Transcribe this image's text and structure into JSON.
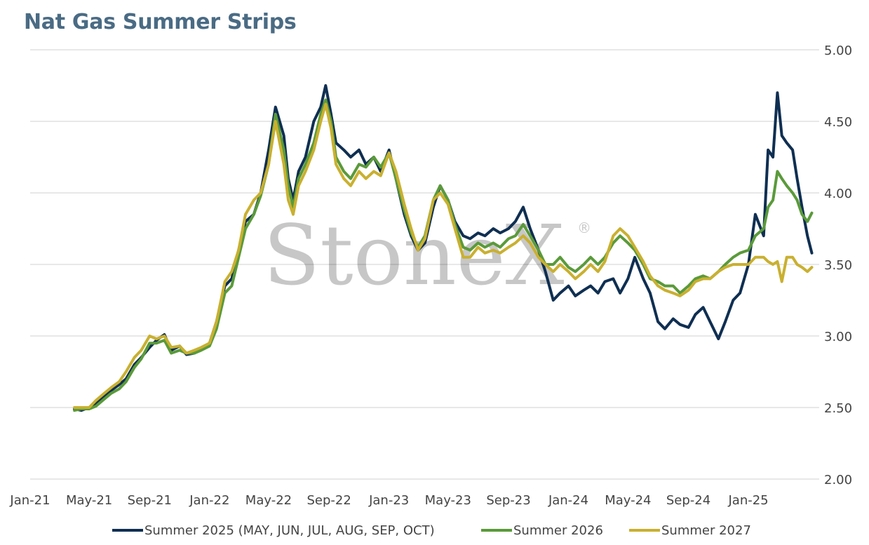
{
  "chart_data": {
    "type": "line",
    "title": "Nat Gas Summer Strips",
    "watermark": "StoneX",
    "watermark_mark": "®",
    "x_tick_labels": [
      "Jan-21",
      "May-21",
      "Sep-21",
      "Jan-22",
      "May-22",
      "Sep-22",
      "Jan-23",
      "May-23",
      "Sep-23",
      "Jan-24",
      "May-24",
      "Sep-24",
      "Jan-25"
    ],
    "y_tick_labels": [
      "2.00",
      "2.50",
      "3.00",
      "3.50",
      "4.00",
      "4.50",
      "5.00"
    ],
    "xlim": [
      "2021-01-01",
      "2025-05-25"
    ],
    "ylim": [
      2.0,
      5.0
    ],
    "y_axis_position": "right",
    "grid": "horizontal",
    "legend_position": "bottom",
    "colors": {
      "Summer 2025 (MAY, JUN, JUL, AUG, SEP, OCT)": "#0f2f52",
      "Summer 2026": "#5a9a3a",
      "Summer 2027": "#c9b030"
    },
    "series": [
      {
        "name": "Summer 2025 (MAY, JUN, JUL, AUG, SEP, OCT)",
        "x": [
          "2021-04-01",
          "2021-04-15",
          "2021-05-01",
          "2021-05-15",
          "2021-06-01",
          "2021-06-15",
          "2021-07-01",
          "2021-07-15",
          "2021-08-01",
          "2021-08-15",
          "2021-09-01",
          "2021-09-15",
          "2021-10-01",
          "2021-10-15",
          "2021-11-01",
          "2021-11-15",
          "2021-12-01",
          "2021-12-15",
          "2022-01-01",
          "2022-01-15",
          "2022-02-01",
          "2022-02-15",
          "2022-03-01",
          "2022-03-15",
          "2022-04-01",
          "2022-04-15",
          "2022-05-01",
          "2022-05-15",
          "2022-06-01",
          "2022-06-10",
          "2022-06-20",
          "2022-07-01",
          "2022-07-15",
          "2022-08-01",
          "2022-08-15",
          "2022-08-25",
          "2022-09-05",
          "2022-09-15",
          "2022-10-01",
          "2022-10-15",
          "2022-11-01",
          "2022-11-15",
          "2022-12-01",
          "2022-12-15",
          "2023-01-01",
          "2023-01-15",
          "2023-02-01",
          "2023-02-15",
          "2023-03-01",
          "2023-03-15",
          "2023-04-01",
          "2023-04-15",
          "2023-05-01",
          "2023-05-15",
          "2023-06-01",
          "2023-06-15",
          "2023-07-01",
          "2023-07-15",
          "2023-08-01",
          "2023-08-15",
          "2023-09-01",
          "2023-09-15",
          "2023-10-01",
          "2023-10-15",
          "2023-11-01",
          "2023-11-15",
          "2023-12-01",
          "2023-12-15",
          "2024-01-01",
          "2024-01-15",
          "2024-02-01",
          "2024-02-15",
          "2024-03-01",
          "2024-03-15",
          "2024-04-01",
          "2024-04-15",
          "2024-05-01",
          "2024-05-15",
          "2024-06-01",
          "2024-06-15",
          "2024-07-01",
          "2024-07-15",
          "2024-08-01",
          "2024-08-15",
          "2024-09-01",
          "2024-09-15",
          "2024-10-01",
          "2024-10-15",
          "2024-11-01",
          "2024-11-15",
          "2024-12-01",
          "2024-12-15",
          "2025-01-01",
          "2025-01-15",
          "2025-02-01",
          "2025-02-10",
          "2025-02-20",
          "2025-03-01",
          "2025-03-10",
          "2025-03-20",
          "2025-04-01",
          "2025-04-10",
          "2025-04-20",
          "2025-05-01",
          "2025-05-10"
        ],
        "values": [
          2.49,
          2.48,
          2.5,
          2.53,
          2.58,
          2.62,
          2.66,
          2.7,
          2.8,
          2.85,
          2.92,
          2.97,
          3.01,
          2.9,
          2.93,
          2.87,
          2.88,
          2.91,
          2.95,
          3.1,
          3.35,
          3.4,
          3.6,
          3.8,
          3.85,
          4.0,
          4.3,
          4.6,
          4.4,
          4.1,
          3.95,
          4.15,
          4.25,
          4.5,
          4.6,
          4.75,
          4.55,
          4.35,
          4.3,
          4.25,
          4.3,
          4.2,
          4.25,
          4.15,
          4.3,
          4.1,
          3.85,
          3.7,
          3.6,
          3.65,
          3.9,
          4.05,
          3.95,
          3.8,
          3.7,
          3.68,
          3.72,
          3.7,
          3.75,
          3.72,
          3.75,
          3.8,
          3.9,
          3.75,
          3.6,
          3.45,
          3.25,
          3.3,
          3.35,
          3.28,
          3.32,
          3.35,
          3.3,
          3.38,
          3.4,
          3.3,
          3.4,
          3.55,
          3.4,
          3.3,
          3.1,
          3.05,
          3.12,
          3.08,
          3.06,
          3.15,
          3.2,
          3.1,
          2.98,
          3.1,
          3.25,
          3.3,
          3.5,
          3.85,
          3.7,
          4.3,
          4.25,
          4.7,
          4.4,
          4.35,
          4.3,
          4.1,
          3.9,
          3.7,
          3.58
        ]
      },
      {
        "name": "Summer 2026",
        "x": [
          "2021-04-01",
          "2021-04-15",
          "2021-05-01",
          "2021-05-15",
          "2021-06-01",
          "2021-06-15",
          "2021-07-01",
          "2021-07-15",
          "2021-08-01",
          "2021-08-15",
          "2021-09-01",
          "2021-09-15",
          "2021-10-01",
          "2021-10-15",
          "2021-11-01",
          "2021-11-15",
          "2021-12-01",
          "2021-12-15",
          "2022-01-01",
          "2022-01-15",
          "2022-02-01",
          "2022-02-15",
          "2022-03-01",
          "2022-03-15",
          "2022-04-01",
          "2022-04-15",
          "2022-05-01",
          "2022-05-15",
          "2022-06-01",
          "2022-06-10",
          "2022-06-20",
          "2022-07-01",
          "2022-07-15",
          "2022-08-01",
          "2022-08-15",
          "2022-08-25",
          "2022-09-05",
          "2022-09-15",
          "2022-10-01",
          "2022-10-15",
          "2022-11-01",
          "2022-11-15",
          "2022-12-01",
          "2022-12-15",
          "2023-01-01",
          "2023-01-15",
          "2023-02-01",
          "2023-02-15",
          "2023-03-01",
          "2023-03-15",
          "2023-04-01",
          "2023-04-15",
          "2023-05-01",
          "2023-05-15",
          "2023-06-01",
          "2023-06-15",
          "2023-07-01",
          "2023-07-15",
          "2023-08-01",
          "2023-08-15",
          "2023-09-01",
          "2023-09-15",
          "2023-10-01",
          "2023-10-15",
          "2023-11-01",
          "2023-11-15",
          "2023-12-01",
          "2023-12-15",
          "2024-01-01",
          "2024-01-15",
          "2024-02-01",
          "2024-02-15",
          "2024-03-01",
          "2024-03-15",
          "2024-04-01",
          "2024-04-15",
          "2024-05-01",
          "2024-05-15",
          "2024-06-01",
          "2024-06-15",
          "2024-07-01",
          "2024-07-15",
          "2024-08-01",
          "2024-08-15",
          "2024-09-01",
          "2024-09-15",
          "2024-10-01",
          "2024-10-15",
          "2024-11-01",
          "2024-11-15",
          "2024-12-01",
          "2024-12-15",
          "2025-01-01",
          "2025-01-15",
          "2025-02-01",
          "2025-02-10",
          "2025-02-20",
          "2025-03-01",
          "2025-03-10",
          "2025-03-20",
          "2025-04-01",
          "2025-04-10",
          "2025-04-20",
          "2025-05-01",
          "2025-05-10"
        ],
        "values": [
          2.48,
          2.49,
          2.49,
          2.51,
          2.56,
          2.6,
          2.63,
          2.68,
          2.78,
          2.84,
          2.95,
          2.95,
          2.97,
          2.88,
          2.9,
          2.88,
          2.88,
          2.9,
          2.93,
          3.05,
          3.3,
          3.35,
          3.55,
          3.75,
          3.85,
          3.98,
          4.2,
          4.55,
          4.3,
          4.05,
          3.9,
          4.1,
          4.2,
          4.35,
          4.55,
          4.65,
          4.5,
          4.25,
          4.15,
          4.1,
          4.2,
          4.18,
          4.25,
          4.18,
          4.28,
          4.1,
          3.88,
          3.72,
          3.62,
          3.7,
          3.95,
          4.05,
          3.95,
          3.78,
          3.62,
          3.6,
          3.65,
          3.62,
          3.65,
          3.62,
          3.68,
          3.7,
          3.78,
          3.7,
          3.6,
          3.5,
          3.5,
          3.55,
          3.48,
          3.45,
          3.5,
          3.55,
          3.5,
          3.55,
          3.65,
          3.7,
          3.65,
          3.6,
          3.5,
          3.4,
          3.38,
          3.35,
          3.35,
          3.3,
          3.35,
          3.4,
          3.42,
          3.4,
          3.45,
          3.5,
          3.55,
          3.58,
          3.6,
          3.7,
          3.75,
          3.9,
          3.95,
          4.15,
          4.1,
          4.05,
          4.0,
          3.95,
          3.85,
          3.8,
          3.86
        ]
      },
      {
        "name": "Summer 2027",
        "x": [
          "2021-04-01",
          "2021-04-15",
          "2021-05-01",
          "2021-05-15",
          "2021-06-01",
          "2021-06-15",
          "2021-07-01",
          "2021-07-15",
          "2021-08-01",
          "2021-08-15",
          "2021-09-01",
          "2021-09-15",
          "2021-10-01",
          "2021-10-15",
          "2021-11-01",
          "2021-11-15",
          "2021-12-01",
          "2021-12-15",
          "2022-01-01",
          "2022-01-15",
          "2022-02-01",
          "2022-02-15",
          "2022-03-01",
          "2022-03-15",
          "2022-04-01",
          "2022-04-15",
          "2022-05-01",
          "2022-05-15",
          "2022-06-01",
          "2022-06-10",
          "2022-06-20",
          "2022-07-01",
          "2022-07-15",
          "2022-08-01",
          "2022-08-15",
          "2022-08-25",
          "2022-09-05",
          "2022-09-15",
          "2022-10-01",
          "2022-10-15",
          "2022-11-01",
          "2022-11-15",
          "2022-12-01",
          "2022-12-15",
          "2023-01-01",
          "2023-01-15",
          "2023-02-01",
          "2023-02-15",
          "2023-03-01",
          "2023-03-15",
          "2023-04-01",
          "2023-04-15",
          "2023-05-01",
          "2023-05-15",
          "2023-06-01",
          "2023-06-15",
          "2023-07-01",
          "2023-07-15",
          "2023-08-01",
          "2023-08-15",
          "2023-09-01",
          "2023-09-15",
          "2023-10-01",
          "2023-10-15",
          "2023-11-01",
          "2023-11-15",
          "2023-12-01",
          "2023-12-15",
          "2024-01-01",
          "2024-01-15",
          "2024-02-01",
          "2024-02-15",
          "2024-03-01",
          "2024-03-15",
          "2024-04-01",
          "2024-04-15",
          "2024-05-01",
          "2024-05-15",
          "2024-06-01",
          "2024-06-15",
          "2024-07-01",
          "2024-07-15",
          "2024-08-01",
          "2024-08-15",
          "2024-09-01",
          "2024-09-15",
          "2024-10-01",
          "2024-10-15",
          "2024-11-01",
          "2024-11-15",
          "2024-12-01",
          "2024-12-15",
          "2025-01-01",
          "2025-01-15",
          "2025-02-01",
          "2025-02-10",
          "2025-02-20",
          "2025-03-01",
          "2025-03-10",
          "2025-03-20",
          "2025-04-01",
          "2025-04-10",
          "2025-04-20",
          "2025-05-01",
          "2025-05-10"
        ],
        "values": [
          2.5,
          2.5,
          2.5,
          2.55,
          2.6,
          2.64,
          2.68,
          2.75,
          2.85,
          2.9,
          3.0,
          2.98,
          3.0,
          2.92,
          2.93,
          2.88,
          2.9,
          2.92,
          2.95,
          3.1,
          3.38,
          3.45,
          3.6,
          3.85,
          3.95,
          4.0,
          4.2,
          4.5,
          4.2,
          3.95,
          3.85,
          4.05,
          4.15,
          4.3,
          4.5,
          4.62,
          4.45,
          4.2,
          4.1,
          4.05,
          4.15,
          4.1,
          4.15,
          4.12,
          4.28,
          4.15,
          3.92,
          3.75,
          3.6,
          3.68,
          3.95,
          4.0,
          3.92,
          3.75,
          3.55,
          3.55,
          3.62,
          3.58,
          3.6,
          3.58,
          3.62,
          3.65,
          3.7,
          3.65,
          3.55,
          3.5,
          3.45,
          3.5,
          3.45,
          3.4,
          3.45,
          3.5,
          3.45,
          3.52,
          3.7,
          3.75,
          3.7,
          3.62,
          3.52,
          3.42,
          3.35,
          3.32,
          3.3,
          3.28,
          3.32,
          3.38,
          3.4,
          3.4,
          3.45,
          3.48,
          3.5,
          3.5,
          3.5,
          3.55,
          3.55,
          3.52,
          3.5,
          3.52,
          3.38,
          3.55,
          3.55,
          3.5,
          3.48,
          3.45,
          3.48
        ]
      }
    ]
  }
}
